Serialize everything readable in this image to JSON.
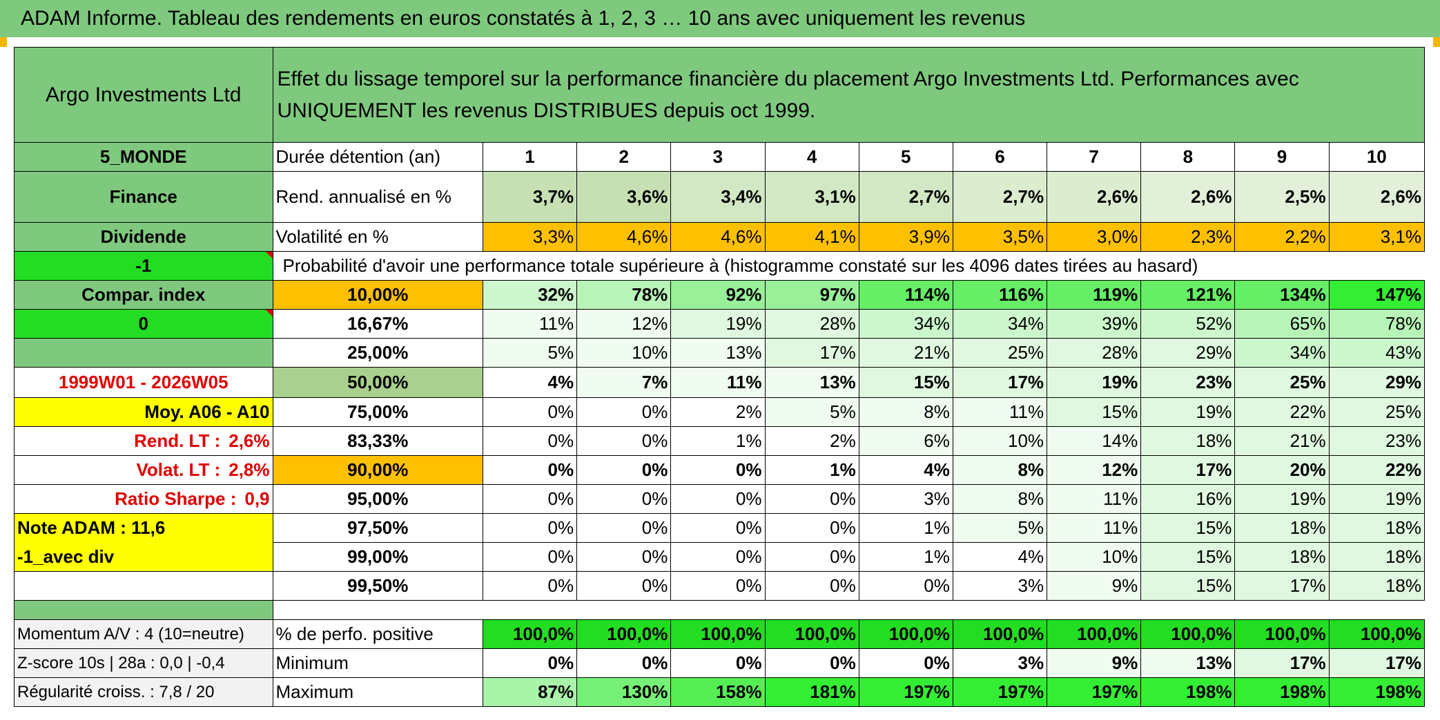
{
  "title": "ADAM Informe. Tableau des rendements en euros constatés à 1, 2, 3 … 10 ans avec uniquement les revenus",
  "header": {
    "fund_name": "Argo Investments Ltd",
    "description": "Effet du lissage temporel sur la performance financière du placement Argo Investments Ltd. Performances avec UNIQUEMENT les revenus DISTRIBUES depuis oct 1999."
  },
  "left_panel": {
    "zone": "5_MONDE",
    "sector": "Finance",
    "type": "Dividende",
    "code": "-1",
    "compar_index": "Compar. index",
    "index_value": "0",
    "blank_row": "",
    "period": "1999W01 - 2026W05",
    "moy": "Moy. A06 - A10",
    "rend_lt_label": "Rend. LT :",
    "rend_lt_value": "2,6%",
    "volat_lt_label": "Volat. LT :",
    "volat_lt_value": "2,8%",
    "sharpe_label": "Ratio Sharpe :",
    "sharpe_value": "0,9",
    "note": "Note ADAM : 11,6",
    "avec_div": "-1_avec div"
  },
  "years_label": "Durée détention (an)",
  "years": [
    "1",
    "2",
    "3",
    "4",
    "5",
    "6",
    "7",
    "8",
    "9",
    "10"
  ],
  "rend": {
    "label": "Rend. annualisé en %",
    "values": [
      "3,7%",
      "3,6%",
      "3,4%",
      "3,1%",
      "2,7%",
      "2,7%",
      "2,6%",
      "2,6%",
      "2,5%",
      "2,6%"
    ]
  },
  "vol": {
    "label": "Volatilité en %",
    "values": [
      "3,3%",
      "4,6%",
      "4,6%",
      "4,1%",
      "3,9%",
      "3,5%",
      "3,0%",
      "2,3%",
      "2,2%",
      "3,1%"
    ]
  },
  "prob_title": "Probabilité d'avoir une performance totale supérieure à (histogramme constaté sur les 4096 dates tirées au hasard)",
  "probability_rows": [
    {
      "threshold": "10,00%",
      "values": [
        "32%",
        "78%",
        "92%",
        "97%",
        "114%",
        "116%",
        "119%",
        "121%",
        "134%",
        "147%"
      ]
    },
    {
      "threshold": "16,67%",
      "values": [
        "11%",
        "12%",
        "19%",
        "28%",
        "34%",
        "34%",
        "39%",
        "52%",
        "65%",
        "78%"
      ]
    },
    {
      "threshold": "25,00%",
      "values": [
        "5%",
        "10%",
        "13%",
        "17%",
        "21%",
        "25%",
        "28%",
        "29%",
        "34%",
        "43%"
      ]
    },
    {
      "threshold": "50,00%",
      "values": [
        "4%",
        "7%",
        "11%",
        "13%",
        "15%",
        "17%",
        "19%",
        "23%",
        "25%",
        "29%"
      ]
    },
    {
      "threshold": "75,00%",
      "values": [
        "0%",
        "0%",
        "2%",
        "5%",
        "8%",
        "11%",
        "15%",
        "19%",
        "22%",
        "25%"
      ]
    },
    {
      "threshold": "83,33%",
      "values": [
        "0%",
        "0%",
        "1%",
        "2%",
        "6%",
        "10%",
        "14%",
        "18%",
        "21%",
        "23%"
      ]
    },
    {
      "threshold": "90,00%",
      "values": [
        "0%",
        "0%",
        "0%",
        "1%",
        "4%",
        "8%",
        "12%",
        "17%",
        "20%",
        "22%"
      ]
    },
    {
      "threshold": "95,00%",
      "values": [
        "0%",
        "0%",
        "0%",
        "0%",
        "3%",
        "8%",
        "11%",
        "16%",
        "19%",
        "19%"
      ]
    },
    {
      "threshold": "97,50%",
      "values": [
        "0%",
        "0%",
        "0%",
        "0%",
        "1%",
        "5%",
        "11%",
        "15%",
        "18%",
        "18%"
      ]
    },
    {
      "threshold": "99,00%",
      "values": [
        "0%",
        "0%",
        "0%",
        "0%",
        "1%",
        "4%",
        "10%",
        "15%",
        "18%",
        "18%"
      ]
    },
    {
      "threshold": "99,50%",
      "values": [
        "0%",
        "0%",
        "0%",
        "0%",
        "0%",
        "3%",
        "9%",
        "15%",
        "17%",
        "18%"
      ]
    }
  ],
  "bottom": {
    "momentum": "Momentum A/V : 4 (10=neutre)",
    "zscore": "Z-score 10s | 28a : 0,0 | -0,4",
    "regularite": "Régularité croiss. : 7,8 / 20",
    "positive_label": "% de perfo. positive",
    "positive_values": [
      "100,0%",
      "100,0%",
      "100,0%",
      "100,0%",
      "100,0%",
      "100,0%",
      "100,0%",
      "100,0%",
      "100,0%",
      "100,0%"
    ],
    "minimum_label": "Minimum",
    "minimum_values": [
      "0%",
      "0%",
      "0%",
      "0%",
      "0%",
      "3%",
      "9%",
      "13%",
      "17%",
      "17%"
    ],
    "maximum_label": "Maximum",
    "maximum_values": [
      "87%",
      "130%",
      "158%",
      "181%",
      "197%",
      "197%",
      "197%",
      "198%",
      "198%",
      "198%"
    ]
  },
  "colors": {
    "header_green": "#7fc97f",
    "bright_green": "#22dd22",
    "yellow": "#ffff00",
    "orange": "#ffc000",
    "red_text": "#e00000"
  }
}
